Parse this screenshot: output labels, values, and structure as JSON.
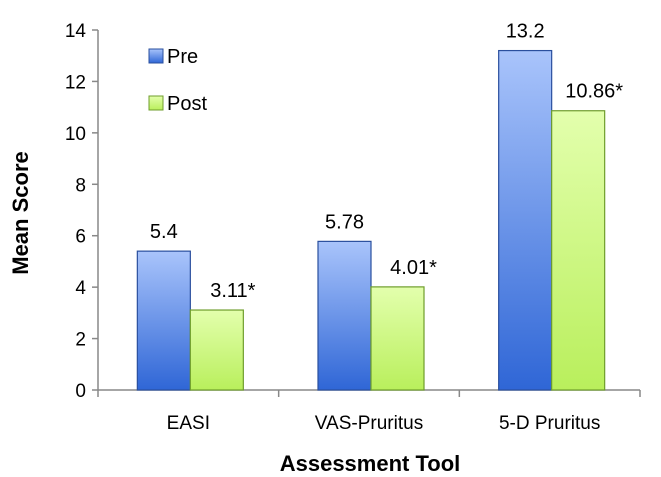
{
  "chart_data": {
    "type": "bar",
    "title": "",
    "xlabel": "Assessment Tool",
    "ylabel": "Mean Score",
    "ylim": [
      0,
      14
    ],
    "yticks": [
      0,
      2,
      4,
      6,
      8,
      10,
      12,
      14
    ],
    "grid": false,
    "legend_position": "top-left",
    "categories": [
      "EASI",
      "VAS-Pruritus",
      "5-D Pruritus"
    ],
    "series": [
      {
        "name": "Pre",
        "values": [
          5.4,
          5.78,
          13.2
        ],
        "labels": [
          "5.4",
          "5.78",
          "13.2"
        ],
        "color": "#5b8ff0",
        "color_light": "#a9c4fb",
        "color_dark": "#2f66d6",
        "edge": "#2a4f9e"
      },
      {
        "name": "Post",
        "values": [
          3.11,
          4.01,
          10.86
        ],
        "labels": [
          "3.11*",
          "4.01*",
          "10.86*"
        ],
        "color": "#ccff77",
        "color_light": "#e3ffad",
        "color_dark": "#b9ef5c",
        "edge": "#6f9d2c"
      }
    ]
  }
}
